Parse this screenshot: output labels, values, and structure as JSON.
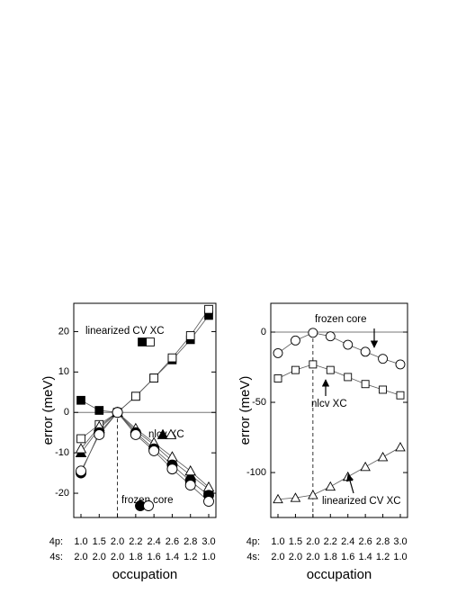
{
  "chart_data": [
    {
      "type": "line",
      "ylabel": "error (meV)",
      "xlabel": "occupation",
      "category_rows": [
        "4p:",
        "4s:"
      ],
      "categories": [
        "1.0",
        "1.5",
        "2.0",
        "2.2",
        "2.4",
        "2.6",
        "2.8",
        "3.0"
      ],
      "categories2": [
        "2.0",
        "2.0",
        "2.0",
        "1.8",
        "1.6",
        "1.4",
        "1.2",
        "1.0"
      ],
      "ylim": [
        -26,
        27
      ],
      "yticks": [
        -20,
        -10,
        0,
        10,
        20
      ],
      "hline": 0,
      "vline_index": 2,
      "groups": [
        {
          "label": "linearized CV XC",
          "series": [
            {
              "marker": "square",
              "filled": true,
              "values": [
                3,
                0.5,
                0,
                4,
                8.5,
                13,
                18,
                24
              ]
            },
            {
              "marker": "square",
              "filled": false,
              "values": [
                -6.5,
                -3,
                0,
                4,
                8.5,
                13.5,
                19,
                25.5
              ]
            }
          ]
        },
        {
          "label": "nlcv XC",
          "series": [
            {
              "marker": "triangle",
              "filled": true,
              "values": [
                -10,
                -4,
                0,
                -4.5,
                -8,
                -12,
                -15.5,
                -19
              ]
            },
            {
              "marker": "triangle",
              "filled": false,
              "values": [
                -9,
                -3.5,
                0,
                -4,
                -7.5,
                -11,
                -14.5,
                -18.5
              ]
            }
          ]
        },
        {
          "label": "frozen core",
          "series": [
            {
              "marker": "circle",
              "filled": true,
              "values": [
                -15,
                -5,
                0,
                -5,
                -9,
                -13,
                -17,
                -20.5
              ]
            },
            {
              "marker": "circle",
              "filled": false,
              "values": [
                -14.5,
                -5.5,
                0,
                -5.5,
                -9.5,
                -14,
                -18,
                -22
              ]
            }
          ]
        }
      ]
    },
    {
      "type": "line",
      "ylabel": "error (meV)",
      "xlabel": "occupation",
      "category_rows": [
        "4p:",
        "4s:"
      ],
      "categories": [
        "1.0",
        "1.5",
        "2.0",
        "2.2",
        "2.4",
        "2.6",
        "2.8",
        "3.0"
      ],
      "categories2": [
        "2.0",
        "2.0",
        "2.0",
        "1.8",
        "1.6",
        "1.4",
        "1.2",
        "1.0"
      ],
      "ylim": [
        -132,
        20.5
      ],
      "yticks": [
        -100,
        -50,
        0
      ],
      "hline": 0,
      "vline_index": 2,
      "groups": [
        {
          "label": "frozen core",
          "series": [
            {
              "marker": "circle",
              "filled": false,
              "values": [
                -15,
                -6,
                -0.5,
                -3,
                -9,
                -14,
                -19,
                -23
              ]
            }
          ]
        },
        {
          "label": "nlcv XC",
          "series": [
            {
              "marker": "square",
              "filled": false,
              "values": [
                -33,
                -27,
                -23,
                -27,
                -32,
                -37,
                -41,
                -45
              ]
            }
          ]
        },
        {
          "label": "linearized CV XC",
          "series": [
            {
              "marker": "triangle",
              "filled": false,
              "values": [
                -119,
                -118,
                -116,
                -110,
                -103,
                -96,
                -89,
                -82
              ]
            }
          ]
        }
      ]
    }
  ]
}
